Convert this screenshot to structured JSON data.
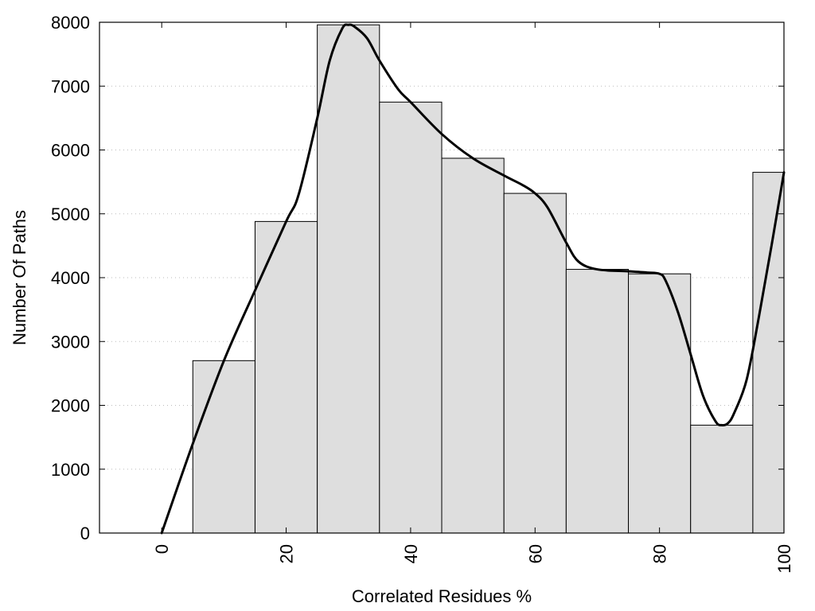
{
  "chart_data": {
    "type": "bar",
    "subtype": "histogram",
    "title": "",
    "xlabel": "Correlated Residues %",
    "ylabel": "Number Of Paths",
    "xlim": [
      -10,
      100
    ],
    "ylim": [
      0,
      8000
    ],
    "xticks": [
      0,
      20,
      40,
      60,
      80,
      100
    ],
    "yticks": [
      0,
      1000,
      2000,
      3000,
      4000,
      5000,
      6000,
      7000,
      8000
    ],
    "xtick_labels": [
      "0",
      "20",
      "40",
      "60",
      "80",
      "100"
    ],
    "ytick_labels": [
      "0",
      "1000",
      "2000",
      "3000",
      "4000",
      "5000",
      "6000",
      "7000",
      "8000"
    ],
    "grid": {
      "y": true,
      "x": false,
      "style": "dotted"
    },
    "bins": [
      {
        "start": 5,
        "end": 15,
        "value": 2700
      },
      {
        "start": 15,
        "end": 25,
        "value": 4880
      },
      {
        "start": 25,
        "end": 35,
        "value": 7960
      },
      {
        "start": 35,
        "end": 45,
        "value": 6750
      },
      {
        "start": 45,
        "end": 55,
        "value": 5870
      },
      {
        "start": 55,
        "end": 65,
        "value": 5320
      },
      {
        "start": 65,
        "end": 75,
        "value": 4130
      },
      {
        "start": 75,
        "end": 85,
        "value": 4060
      },
      {
        "start": 85,
        "end": 95,
        "value": 1690
      },
      {
        "start": 95,
        "end": 100,
        "value": 5650
      }
    ],
    "smooth_curve": {
      "x": [
        0,
        5,
        10,
        15,
        20,
        22,
        25,
        27,
        29,
        30,
        31,
        33,
        35,
        38,
        40,
        45,
        50,
        55,
        58,
        60,
        62,
        65,
        67,
        70,
        75,
        78,
        80,
        81,
        83,
        85,
        87,
        89,
        90,
        91,
        92,
        94,
        96,
        98,
        100
      ],
      "y": [
        0,
        1400,
        2700,
        3800,
        4880,
        5300,
        6500,
        7400,
        7900,
        7960,
        7930,
        7750,
        7400,
        6950,
        6750,
        6250,
        5870,
        5600,
        5450,
        5320,
        5100,
        4550,
        4250,
        4130,
        4100,
        4080,
        4060,
        3950,
        3450,
        2800,
        2150,
        1750,
        1690,
        1720,
        1880,
        2400,
        3400,
        4500,
        5650
      ]
    },
    "colors": {
      "bar_fill": "#dedede",
      "bar_stroke": "#000000",
      "curve": "#000000",
      "grid": "#bbbbbb"
    }
  }
}
